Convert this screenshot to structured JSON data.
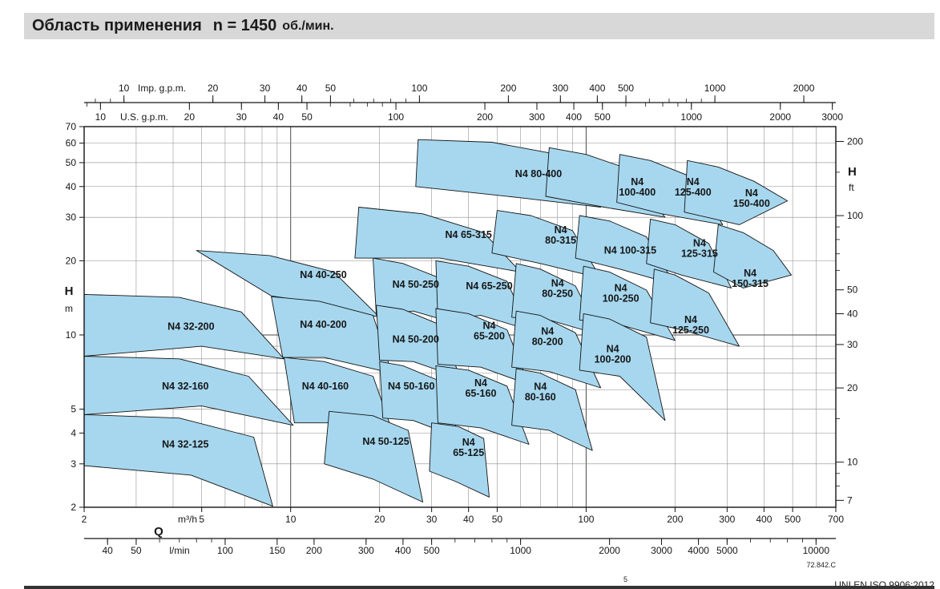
{
  "header": {
    "title": "Область применения",
    "speed": "n = 1450",
    "speed_unit": "об./мин."
  },
  "footer": {
    "drawing_ref": "72.842.C",
    "footnote_marker": "5",
    "standard_note": "UNI EN ISO 9906:2012"
  },
  "chart_data": {
    "type": "area",
    "description": "Pump selection coverage chart: head H versus flow Q, log-log scales",
    "field_color": "#a6d7ee",
    "axes": {
      "q_m3h": {
        "label": "Q",
        "unit": "m³/h",
        "min": 2,
        "max": 700,
        "labeled_ticks": [
          2,
          5,
          10,
          20,
          30,
          40,
          50,
          100,
          200,
          300,
          400,
          500,
          700
        ]
      },
      "q_lmin": {
        "unit": "l/min",
        "per_m3h": 16.6667,
        "labeled_ticks": [
          40,
          50,
          100,
          150,
          200,
          300,
          400,
          500,
          1000,
          2000,
          3000,
          4000,
          5000,
          10000
        ]
      },
      "q_us_gpm": {
        "unit": "U.S. g.p.m.",
        "per_m3h": 4.4029,
        "labeled_ticks": [
          10,
          20,
          30,
          40,
          50,
          100,
          200,
          300,
          400,
          500,
          1000,
          2000,
          3000
        ]
      },
      "q_imp_gpm": {
        "unit": "Imp. g.p.m.",
        "per_m3h": 3.6662,
        "labeled_ticks": [
          10,
          20,
          30,
          40,
          50,
          100,
          200,
          300,
          400,
          500,
          1000,
          2000
        ]
      },
      "h_m": {
        "label": "H",
        "unit": "m",
        "min": 2,
        "max": 70,
        "labeled_ticks": [
          70,
          60,
          50,
          40,
          30,
          20,
          10,
          5,
          4,
          3,
          2
        ]
      },
      "h_ft": {
        "label": "H",
        "unit": "ft",
        "per_m": 3.2808,
        "labeled_ticks": [
          200,
          100,
          50,
          40,
          30,
          20,
          10,
          7
        ],
        "minor_ticks": [
          8,
          9,
          15,
          60,
          70,
          80,
          90,
          150
        ]
      }
    },
    "fields": [
      {
        "model": "N4 32-200",
        "label_lines": [
          "N4 32-200"
        ],
        "label_at": [
          4.6,
          10.8
        ],
        "points": [
          [
            2,
            14.6
          ],
          [
            4.2,
            14.2
          ],
          [
            6.8,
            12.4
          ],
          [
            9.5,
            8.0
          ],
          [
            5,
            9.0
          ],
          [
            2,
            8.2
          ]
        ]
      },
      {
        "model": "N4 32-160",
        "label_lines": [
          "N4 32-160"
        ],
        "label_at": [
          4.4,
          6.2
        ],
        "points": [
          [
            2,
            8.2
          ],
          [
            4.2,
            8.0
          ],
          [
            7.2,
            6.8
          ],
          [
            10.2,
            4.3
          ],
          [
            5,
            5.15
          ],
          [
            2,
            4.75
          ]
        ]
      },
      {
        "model": "N4 32-125",
        "label_lines": [
          "N4 32-125"
        ],
        "label_at": [
          4.4,
          3.6
        ],
        "points": [
          [
            2,
            4.75
          ],
          [
            4.2,
            4.6
          ],
          [
            7.5,
            3.85
          ],
          [
            8.7,
            2.02
          ],
          [
            4.6,
            2.7
          ],
          [
            2,
            2.95
          ]
        ]
      },
      {
        "model": "N4 40-250",
        "label_lines": [
          "N4 40-250"
        ],
        "label_at": [
          12.9,
          17.5
        ],
        "points": [
          [
            4.8,
            22
          ],
          [
            8.5,
            21
          ],
          [
            14,
            18
          ],
          [
            20,
            11.8
          ],
          [
            12.5,
            13.5
          ],
          [
            8.6,
            14.4
          ]
        ]
      },
      {
        "model": "N4 40-200",
        "label_lines": [
          "N4 40-200"
        ],
        "label_at": [
          12.9,
          11.0
        ],
        "points": [
          [
            8.6,
            14.3
          ],
          [
            12.5,
            13.7
          ],
          [
            19,
            12
          ],
          [
            22,
            7.0
          ],
          [
            13,
            8.1
          ],
          [
            9.4,
            8.1
          ]
        ]
      },
      {
        "model": "N4 40-160",
        "label_lines": [
          "N4 40-160"
        ],
        "label_at": [
          13.1,
          6.2
        ],
        "points": [
          [
            9.5,
            8.1
          ],
          [
            13,
            7.8
          ],
          [
            19,
            6.8
          ],
          [
            23.5,
            3.3
          ],
          [
            14,
            4.4
          ],
          [
            10.3,
            4.4
          ]
        ]
      },
      {
        "model": "N4 50-250",
        "label_lines": [
          "N4 50-250"
        ],
        "label_at": [
          26.5,
          16.0
        ],
        "points": [
          [
            19,
            20.5
          ],
          [
            24,
            19.5
          ],
          [
            32,
            17
          ],
          [
            37.5,
            11
          ],
          [
            26,
            12.5
          ],
          [
            19.5,
            12
          ]
        ]
      },
      {
        "model": "N4 50-200",
        "label_lines": [
          "N4 50-200"
        ],
        "label_at": [
          26.5,
          9.6
        ],
        "points": [
          [
            19.5,
            13.2
          ],
          [
            24,
            12.7
          ],
          [
            32,
            11
          ],
          [
            37.5,
            6.7
          ],
          [
            26,
            7.8
          ],
          [
            20,
            7.9
          ]
        ]
      },
      {
        "model": "N4 50-160",
        "label_lines": [
          "N4 50-160"
        ],
        "label_at": [
          25.6,
          6.2
        ],
        "points": [
          [
            20,
            7.8
          ],
          [
            24,
            7.5
          ],
          [
            32,
            6.5
          ],
          [
            37.5,
            3.8
          ],
          [
            26,
            4.5
          ],
          [
            20.5,
            4.6
          ]
        ]
      },
      {
        "model": "N4 50-125",
        "label_lines": [
          "N4 50-125"
        ],
        "label_at": [
          21,
          3.7
        ],
        "points": [
          [
            13.5,
            4.9
          ],
          [
            19,
            4.7
          ],
          [
            25,
            4.1
          ],
          [
            28,
            2.1
          ],
          [
            19,
            2.6
          ],
          [
            13,
            3.0
          ]
        ]
      },
      {
        "model": "N4 65-315",
        "label_lines": [
          "N4 65-315"
        ],
        "label_at": [
          40,
          25.5
        ],
        "points": [
          [
            17,
            33
          ],
          [
            28,
            31
          ],
          [
            45,
            26
          ],
          [
            60,
            18
          ],
          [
            32,
            20.5
          ],
          [
            16.5,
            20.5
          ]
        ]
      },
      {
        "model": "N4 65-250",
        "label_lines": [
          "N4 65-250"
        ],
        "label_at": [
          47,
          15.8
        ],
        "points": [
          [
            31,
            20
          ],
          [
            40,
            19
          ],
          [
            54,
            16.5
          ],
          [
            64,
            10.5
          ],
          [
            44,
            12
          ],
          [
            31.5,
            11.5
          ]
        ]
      },
      {
        "model": "N4 65-200",
        "label_lines": [
          "N4",
          "65-200"
        ],
        "label_at": [
          47,
          10.4
        ],
        "points": [
          [
            31,
            12.8
          ],
          [
            40,
            12.2
          ],
          [
            54,
            10.5
          ],
          [
            64,
            6.3
          ],
          [
            44,
            7.4
          ],
          [
            31.5,
            7.6
          ]
        ]
      },
      {
        "model": "N4 65-160",
        "label_lines": [
          "N4",
          "65-160"
        ],
        "label_at": [
          44,
          6.1
        ],
        "points": [
          [
            31,
            7.5
          ],
          [
            40,
            7.2
          ],
          [
            54,
            6.2
          ],
          [
            64,
            3.6
          ],
          [
            44,
            4.2
          ],
          [
            31.5,
            4.4
          ]
        ]
      },
      {
        "model": "N4 65-125",
        "label_lines": [
          "N4",
          "65-125"
        ],
        "label_at": [
          40,
          3.5
        ],
        "points": [
          [
            30,
            4.4
          ],
          [
            37,
            4.25
          ],
          [
            45,
            3.8
          ],
          [
            47,
            2.2
          ],
          [
            36,
            2.55
          ],
          [
            29.5,
            2.8
          ]
        ]
      },
      {
        "model": "N4 80-400",
        "label_lines": [
          "N4 80-400"
        ],
        "label_at": [
          69,
          45
        ],
        "points": [
          [
            27,
            62
          ],
          [
            48,
            60.5
          ],
          [
            80,
            54
          ],
          [
            112,
            33
          ],
          [
            60,
            36
          ],
          [
            26.5,
            40
          ]
        ]
      },
      {
        "model": "N4 80-315",
        "label_lines": [
          "N4",
          "80-315"
        ],
        "label_at": [
          82,
          25.5
        ],
        "points": [
          [
            50,
            32
          ],
          [
            65,
            30.5
          ],
          [
            90,
            26.5
          ],
          [
            112,
            17
          ],
          [
            70,
            19.5
          ],
          [
            48,
            21.5
          ]
        ]
      },
      {
        "model": "N4 80-250",
        "label_lines": [
          "N4",
          "80-250"
        ],
        "label_at": [
          80,
          15.5
        ],
        "points": [
          [
            58,
            19.5
          ],
          [
            70,
            18.5
          ],
          [
            92,
            15.8
          ],
          [
            112,
            10
          ],
          [
            75,
            11.5
          ],
          [
            56,
            11.8
          ]
        ]
      },
      {
        "model": "N4 80-200",
        "label_lines": [
          "N4",
          "80-200"
        ],
        "label_at": [
          74,
          9.9
        ],
        "points": [
          [
            58,
            12.5
          ],
          [
            70,
            12
          ],
          [
            92,
            10.2
          ],
          [
            112,
            6.1
          ],
          [
            75,
            7.1
          ],
          [
            56,
            7.4
          ]
        ]
      },
      {
        "model": "N4 80-160",
        "label_lines": [
          "N4",
          "80-160"
        ],
        "label_at": [
          70,
          5.9
        ],
        "points": [
          [
            58,
            7.3
          ],
          [
            70,
            7.0
          ],
          [
            92,
            6.0
          ],
          [
            105,
            3.4
          ],
          [
            75,
            4.1
          ],
          [
            56,
            4.3
          ]
        ]
      },
      {
        "model": "N4 100-400",
        "label_lines": [
          "N4",
          "100-400"
        ],
        "label_at": [
          149,
          40
        ],
        "points": [
          [
            75,
            57.5
          ],
          [
            100,
            54
          ],
          [
            140,
            47
          ],
          [
            185,
            30
          ],
          [
            115,
            33
          ],
          [
            73,
            36.5
          ]
        ]
      },
      {
        "model": "N4 100-315",
        "label_lines": [
          "N4 100-315"
        ],
        "label_at": [
          141,
          22
        ],
        "points": [
          [
            95,
            30.5
          ],
          [
            120,
            29
          ],
          [
            160,
            25
          ],
          [
            200,
            16
          ],
          [
            130,
            18.5
          ],
          [
            92,
            20.5
          ]
        ]
      },
      {
        "model": "N4 100-250",
        "label_lines": [
          "N4",
          "100-250"
        ],
        "label_at": [
          131,
          14.8
        ],
        "points": [
          [
            98,
            19
          ],
          [
            120,
            18
          ],
          [
            160,
            15.2
          ],
          [
            200,
            9.5
          ],
          [
            130,
            11
          ],
          [
            95,
            11.5
          ]
        ]
      },
      {
        "model": "N4 100-200",
        "label_lines": [
          "N4",
          "100-200"
        ],
        "label_at": [
          123,
          8.4
        ],
        "points": [
          [
            98,
            12.2
          ],
          [
            120,
            11.6
          ],
          [
            160,
            9.8
          ],
          [
            185,
            4.5
          ],
          [
            130,
            6.8
          ],
          [
            95,
            7.2
          ]
        ]
      },
      {
        "model": "N4 125-400",
        "label_lines": [
          "N4",
          "125-400"
        ],
        "label_at": [
          230,
          40
        ],
        "points": [
          [
            130,
            54
          ],
          [
            165,
            51
          ],
          [
            230,
            43.5
          ],
          [
            290,
            28
          ],
          [
            180,
            31
          ],
          [
            127,
            34.5
          ]
        ]
      },
      {
        "model": "N4 125-315",
        "label_lines": [
          "N4",
          "125-315"
        ],
        "label_at": [
          242,
          22.5
        ],
        "points": [
          [
            165,
            29.5
          ],
          [
            200,
            28
          ],
          [
            260,
            23.5
          ],
          [
            310,
            15.5
          ],
          [
            210,
            17.5
          ],
          [
            160,
            19.5
          ]
        ]
      },
      {
        "model": "N4 125-250",
        "label_lines": [
          "N4",
          "125-250"
        ],
        "label_at": [
          226,
          11
        ],
        "points": [
          [
            170,
            18.5
          ],
          [
            200,
            17.5
          ],
          [
            260,
            14.8
          ],
          [
            330,
            9
          ],
          [
            210,
            10.5
          ],
          [
            165,
            11.2
          ]
        ]
      },
      {
        "model": "N4 150-400",
        "label_lines": [
          "N4",
          "150-400"
        ],
        "label_at": [
          363,
          36
        ],
        "points": [
          [
            220,
            51
          ],
          [
            280,
            48
          ],
          [
            370,
            42
          ],
          [
            480,
            35
          ],
          [
            330,
            28
          ],
          [
            215,
            31.5
          ]
        ]
      },
      {
        "model": "N4 150-315",
        "label_lines": [
          "N4",
          "150-315"
        ],
        "label_at": [
          359,
          17
        ],
        "points": [
          [
            280,
            28
          ],
          [
            340,
            26
          ],
          [
            430,
            22
          ],
          [
            495,
            17.5
          ],
          [
            340,
            15.5
          ],
          [
            270,
            18
          ]
        ]
      }
    ]
  }
}
